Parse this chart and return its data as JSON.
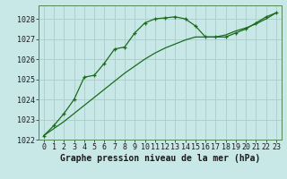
{
  "xlabel": "Graphe pression niveau de la mer (hPa)",
  "background_color": "#c8e8e8",
  "plot_bg_color": "#c8e8e8",
  "grid_color": "#b0d0d0",
  "line_color": "#1a6b1a",
  "marker_color": "#1a6b1a",
  "hours": [
    0,
    1,
    2,
    3,
    4,
    5,
    6,
    7,
    8,
    9,
    10,
    11,
    12,
    13,
    14,
    15,
    16,
    17,
    18,
    19,
    20,
    21,
    22,
    23
  ],
  "pressure": [
    1022.2,
    1022.7,
    1023.3,
    1024.0,
    1025.1,
    1025.2,
    1025.8,
    1026.5,
    1026.6,
    1027.3,
    1027.8,
    1028.0,
    1028.05,
    1028.1,
    1028.0,
    1027.65,
    1027.1,
    1027.1,
    1027.1,
    1027.3,
    1027.5,
    1027.8,
    1028.1,
    1028.3
  ],
  "pressure2": [
    1022.2,
    1022.55,
    1022.9,
    1023.3,
    1023.7,
    1024.1,
    1024.5,
    1024.9,
    1025.3,
    1025.65,
    1026.0,
    1026.3,
    1026.55,
    1026.75,
    1026.95,
    1027.1,
    1027.1,
    1027.1,
    1027.2,
    1027.4,
    1027.55,
    1027.75,
    1028.0,
    1028.3
  ],
  "ylim": [
    1022,
    1028.67
  ],
  "yticks": [
    1022,
    1023,
    1024,
    1025,
    1026,
    1027,
    1028
  ],
  "xticks": [
    0,
    1,
    2,
    3,
    4,
    5,
    6,
    7,
    8,
    9,
    10,
    11,
    12,
    13,
    14,
    15,
    16,
    17,
    18,
    19,
    20,
    21,
    22,
    23
  ],
  "xlabel_fontsize": 7.0,
  "tick_fontsize": 6.0
}
